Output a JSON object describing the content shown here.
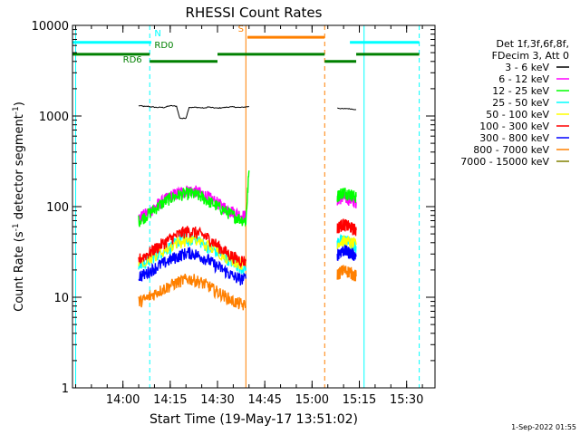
{
  "chart_data": {
    "type": "line",
    "title": "RHESSI Count Rates",
    "xlabel": "Start Time (19-May-17 13:51:02)",
    "ylabel_main": "Count Rate (s",
    "ylabel_sup1": "-1",
    "ylabel_mid": " detector segment",
    "ylabel_sup2": "-1",
    "ylabel_end": ")",
    "yscale": "log",
    "ylim": [
      1,
      10000
    ],
    "xlim_minutes": [
      -16,
      99
    ],
    "xticks": [
      {
        "label": "14:00",
        "t": 0
      },
      {
        "label": "14:15",
        "t": 15
      },
      {
        "label": "14:30",
        "t": 30
      },
      {
        "label": "14:45",
        "t": 45
      },
      {
        "label": "15:00",
        "t": 60
      },
      {
        "label": "15:15",
        "t": 75
      },
      {
        "label": "15:30",
        "t": 90
      }
    ],
    "yticks": [
      {
        "label": "1",
        "v": 1
      },
      {
        "label": "10",
        "v": 10
      },
      {
        "label": "100",
        "v": 100
      },
      {
        "label": "1000",
        "v": 1000
      },
      {
        "label": "10000",
        "v": 10000
      }
    ],
    "legend_header": [
      "Det 1f,3f,6f,8f,",
      "FDecim 3, Att 0"
    ],
    "legend_placement": "right",
    "series": [
      {
        "name": "3 - 6 keV",
        "color": "#000000",
        "x": [
          5,
          6,
          7,
          8,
          9,
          10,
          11,
          12,
          13,
          14,
          15,
          16,
          17,
          18,
          19,
          20,
          21,
          22,
          23,
          24,
          25,
          26,
          27,
          28,
          29,
          30,
          31,
          32,
          33,
          34,
          35,
          36,
          37,
          38,
          39,
          40,
          null,
          68,
          69,
          70,
          71,
          72,
          73,
          74
        ],
        "y": [
          1300,
          1290,
          1270,
          1280,
          1260,
          1250,
          1240,
          1250,
          1240,
          1270,
          1300,
          1290,
          1280,
          950,
          940,
          950,
          1250,
          1240,
          1250,
          1240,
          1230,
          1220,
          1260,
          1240,
          1230,
          1220,
          1230,
          1240,
          1250,
          1260,
          1260,
          1250,
          1240,
          1250,
          1260,
          1270,
          null,
          1230,
          1210,
          1200,
          1210,
          1200,
          1190,
          1180
        ]
      },
      {
        "name": "6 - 12 keV",
        "color": "#ff00ff",
        "x": [
          5,
          7,
          9,
          11,
          13,
          15,
          17,
          19,
          21,
          23,
          25,
          27,
          29,
          31,
          33,
          35,
          37,
          39,
          null,
          68,
          69,
          70,
          71,
          72,
          73,
          74
        ],
        "y": [
          75,
          82,
          92,
          105,
          118,
          130,
          140,
          148,
          152,
          148,
          140,
          128,
          116,
          104,
          95,
          88,
          82,
          78,
          null,
          120,
          125,
          128,
          124,
          120,
          116,
          112
        ]
      },
      {
        "name": "12 - 25 keV",
        "color": "#00ff00",
        "x": [
          5,
          7,
          9,
          11,
          13,
          15,
          17,
          19,
          21,
          23,
          25,
          27,
          29,
          31,
          33,
          35,
          37,
          39,
          40,
          null,
          68,
          69,
          70,
          71,
          72,
          73,
          74
        ],
        "y": [
          70,
          78,
          88,
          100,
          112,
          124,
          132,
          138,
          140,
          136,
          128,
          116,
          106,
          96,
          88,
          80,
          74,
          70,
          250,
          null,
          130,
          140,
          145,
          142,
          138,
          132,
          128
        ]
      },
      {
        "name": "25 - 50 keV",
        "color": "#00ffff",
        "x": [
          5,
          7,
          9,
          11,
          13,
          15,
          17,
          19,
          21,
          23,
          25,
          27,
          29,
          31,
          33,
          35,
          37,
          39,
          null,
          68,
          69,
          70,
          71,
          72,
          73,
          74
        ],
        "y": [
          22,
          24,
          27,
          30,
          33,
          36,
          40,
          45,
          42,
          46,
          40,
          36,
          33,
          30,
          27,
          24,
          22,
          21,
          null,
          40,
          42,
          43,
          42,
          40,
          38,
          36
        ]
      },
      {
        "name": "50 - 100 keV",
        "color": "#ffff00",
        "x": [
          5,
          9,
          13,
          17,
          21,
          25,
          29,
          33,
          37,
          39,
          null,
          68,
          70,
          72,
          74
        ],
        "y": [
          24,
          28,
          33,
          40,
          44,
          40,
          34,
          28,
          24,
          23,
          null,
          40,
          42,
          40,
          38
        ]
      },
      {
        "name": "100 - 300 keV",
        "color": "#ff0000",
        "x": [
          5,
          7,
          9,
          11,
          13,
          15,
          17,
          19,
          21,
          23,
          25,
          27,
          29,
          31,
          33,
          35,
          37,
          39,
          null,
          68,
          69,
          70,
          71,
          72,
          73,
          74
        ],
        "y": [
          26,
          29,
          32,
          36,
          40,
          44,
          48,
          52,
          54,
          52,
          49,
          45,
          40,
          35,
          31,
          28,
          26,
          25,
          null,
          58,
          62,
          64,
          62,
          60,
          57,
          55
        ]
      },
      {
        "name": "300 - 800 keV",
        "color": "#0000ff",
        "x": [
          5,
          7,
          9,
          11,
          13,
          15,
          17,
          19,
          21,
          23,
          25,
          27,
          29,
          31,
          33,
          35,
          37,
          39,
          null,
          68,
          69,
          70,
          71,
          72,
          73,
          74
        ],
        "y": [
          17,
          18,
          20,
          22,
          24,
          26,
          28,
          30,
          31,
          30,
          28,
          26,
          23,
          21,
          19,
          17,
          16,
          16,
          null,
          30,
          32,
          33,
          32,
          31,
          30,
          29
        ]
      },
      {
        "name": "800 - 7000 keV",
        "color": "#ff8000",
        "x": [
          5,
          7,
          9,
          11,
          13,
          15,
          17,
          19,
          21,
          23,
          25,
          27,
          29,
          31,
          33,
          35,
          37,
          39,
          null,
          68,
          69,
          70,
          71,
          72,
          73,
          74
        ],
        "y": [
          9,
          9.5,
          10.5,
          11.5,
          12.5,
          13.5,
          14.5,
          15.5,
          16,
          15.5,
          14.5,
          13.5,
          12,
          11,
          10,
          9,
          8.5,
          8,
          null,
          18,
          19,
          20,
          19.5,
          19,
          18,
          17
        ]
      },
      {
        "name": "7000 - 15000 keV",
        "color": "#808000",
        "x": [],
        "y": []
      }
    ],
    "vertical_lines": [
      {
        "t": -15,
        "color": "#00ffff",
        "style": "solid"
      },
      {
        "t": 8.5,
        "color": "#00ffff",
        "style": "dashed"
      },
      {
        "t": 39,
        "color": "#ff8000",
        "style": "solid"
      },
      {
        "t": 64,
        "color": "#ff8000",
        "style": "dashed"
      },
      {
        "t": 76.5,
        "color": "#00ffff",
        "style": "solid"
      },
      {
        "t": 94,
        "color": "#00ffff",
        "style": "dashed"
      }
    ],
    "flag_bars": [
      {
        "name": "N",
        "color": "#00ffff",
        "value": 6500,
        "segments": [
          [
            -16,
            9
          ],
          [
            72,
            94
          ]
        ]
      },
      {
        "name": "S",
        "color": "#ff8000",
        "value": 7400,
        "segments": [
          [
            39.5,
            64
          ]
        ]
      },
      {
        "name": "RD0",
        "color": "#008000",
        "value": 4800,
        "segments": [
          [
            -16,
            8.5
          ]
        ]
      },
      {
        "name": "RD6",
        "color": "#008000",
        "value": 4000,
        "segments": [
          [
            8.5,
            30
          ]
        ]
      },
      {
        "name": "RD0b",
        "color": "#008000",
        "value": 4800,
        "segments": [
          [
            30,
            64
          ]
        ]
      },
      {
        "name": "RD6b",
        "color": "#008000",
        "value": 4000,
        "segments": [
          [
            64,
            74
          ]
        ]
      },
      {
        "name": "RD0c",
        "color": "#008000",
        "value": 4800,
        "segments": [
          [
            74,
            94
          ]
        ]
      }
    ],
    "flag_labels": [
      {
        "text": "N",
        "color": "#00ffff",
        "t": 10,
        "value": 7600
      },
      {
        "text": "S",
        "color": "#ff8000",
        "t": 36.5,
        "value": 8500
      },
      {
        "text": "RD0",
        "color": "#008000",
        "t": 10,
        "value": 5600
      },
      {
        "text": "RD6",
        "color": "#008000",
        "t": 0,
        "value": 3900
      }
    ]
  },
  "footer": {
    "timestamp": "1-Sep-2022 01:55"
  }
}
